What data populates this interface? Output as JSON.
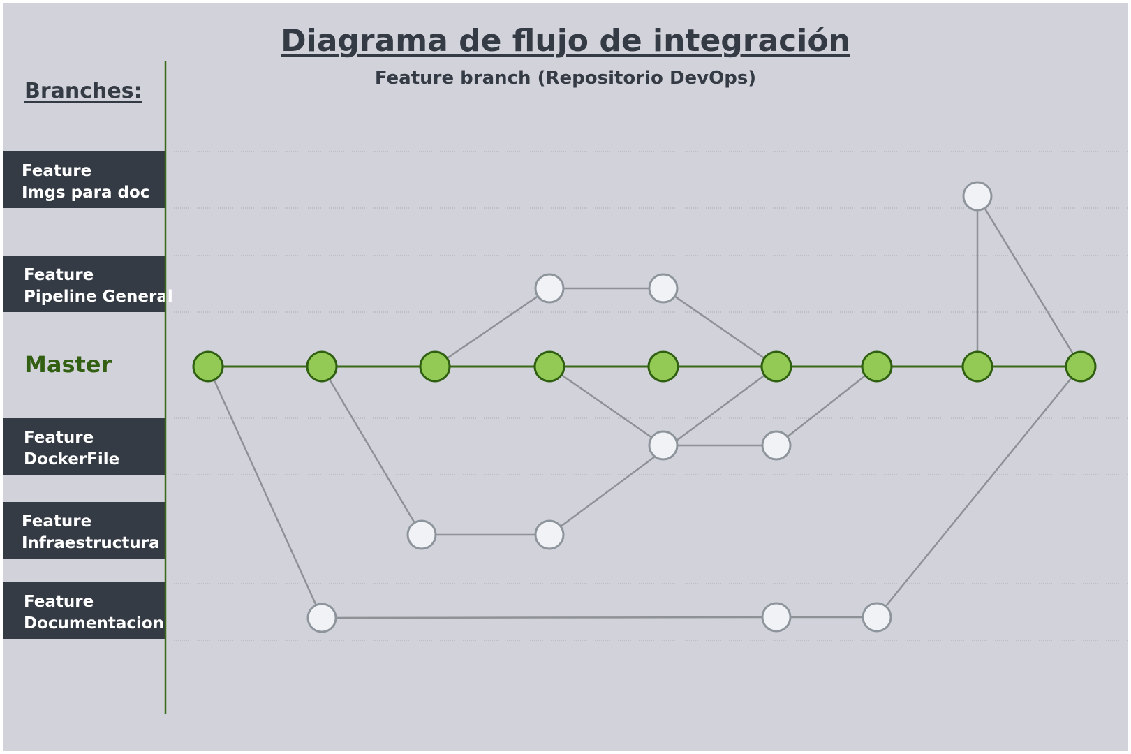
{
  "title": "Diagrama de flujo de integración",
  "subtitle": "Feature branch (Repositorio DevOps)",
  "branches_heading": "Branches:",
  "master_label": "Master",
  "branches": [
    {
      "line1": "Feature",
      "line2": "Imgs para doc"
    },
    {
      "line1": "Feature",
      "line2": "Pipeline General"
    },
    {
      "line1": "Feature",
      "line2": "DockerFile"
    },
    {
      "line1": "Feature",
      "line2": "Infraestructura"
    },
    {
      "line1": "Feature",
      "line2": "Documentacion"
    }
  ],
  "colors": {
    "background": "#d2d3da",
    "label_box": "#353b44",
    "master_line": "#3a6a17",
    "master_node_fill": "#93c955",
    "feature_node_fill": "#f1f2f5",
    "feature_node_stroke": "#8e949c",
    "connector": "#8e9196"
  }
}
